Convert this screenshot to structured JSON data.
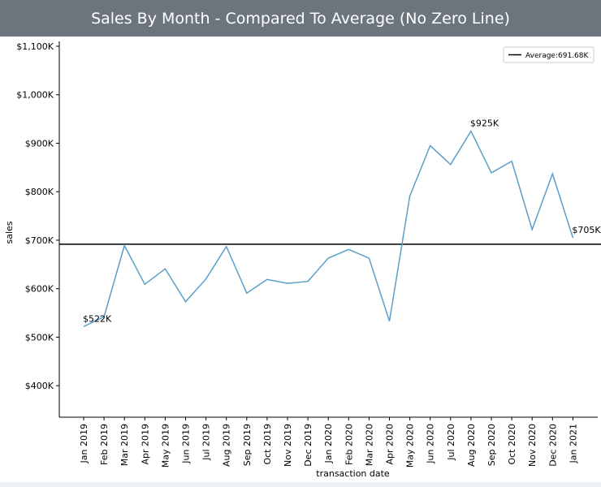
{
  "header": {
    "title": "Sales By Month - Compared To Average (No Zero Line)"
  },
  "chart_data": {
    "type": "line",
    "title": "Sales By Month - Compared To Average (No Zero Line)",
    "xlabel": "transaction date",
    "ylabel": "sales",
    "categories": [
      "Jan 2019",
      "Feb 2019",
      "Mar 2019",
      "Apr 2019",
      "May 2019",
      "Jun 2019",
      "Jul 2019",
      "Aug 2019",
      "Sep 2019",
      "Oct 2019",
      "Nov 2019",
      "Dec 2019",
      "Jan 2020",
      "Feb 2020",
      "Mar 2020",
      "Apr 2020",
      "May 2020",
      "Jun 2020",
      "Jul 2020",
      "Aug 2020",
      "Sep 2020",
      "Oct 2020",
      "Nov 2020",
      "Dec 2020",
      "Jan 2021"
    ],
    "series": [
      {
        "values": [
          522,
          542,
          689,
          609,
          641,
          573,
          620,
          687,
          591,
          619,
          611,
          615,
          663,
          681,
          663,
          533,
          791,
          895,
          856,
          925,
          839,
          863,
          722,
          837,
          705
        ],
        "color": "#5b9ec9"
      }
    ],
    "reference_line": {
      "label": "Average:691.68K",
      "value": 691.68,
      "color": "#000000"
    },
    "annotations": [
      {
        "category": "Jan 2019",
        "text": "$522K"
      },
      {
        "category": "Aug 2020",
        "text": "$925K"
      },
      {
        "category": "Jan 2021",
        "text": "$705K"
      }
    ],
    "yticks": [
      400,
      500,
      600,
      700,
      800,
      900,
      1000,
      1100
    ],
    "ytick_labels": [
      "$400K",
      "$500K",
      "$600K",
      "$700K",
      "$800K",
      "$900K",
      "$1,000K",
      "$1,100K"
    ],
    "ylim": [
      335,
      1110
    ],
    "legend": "top-right",
    "grid": false
  }
}
